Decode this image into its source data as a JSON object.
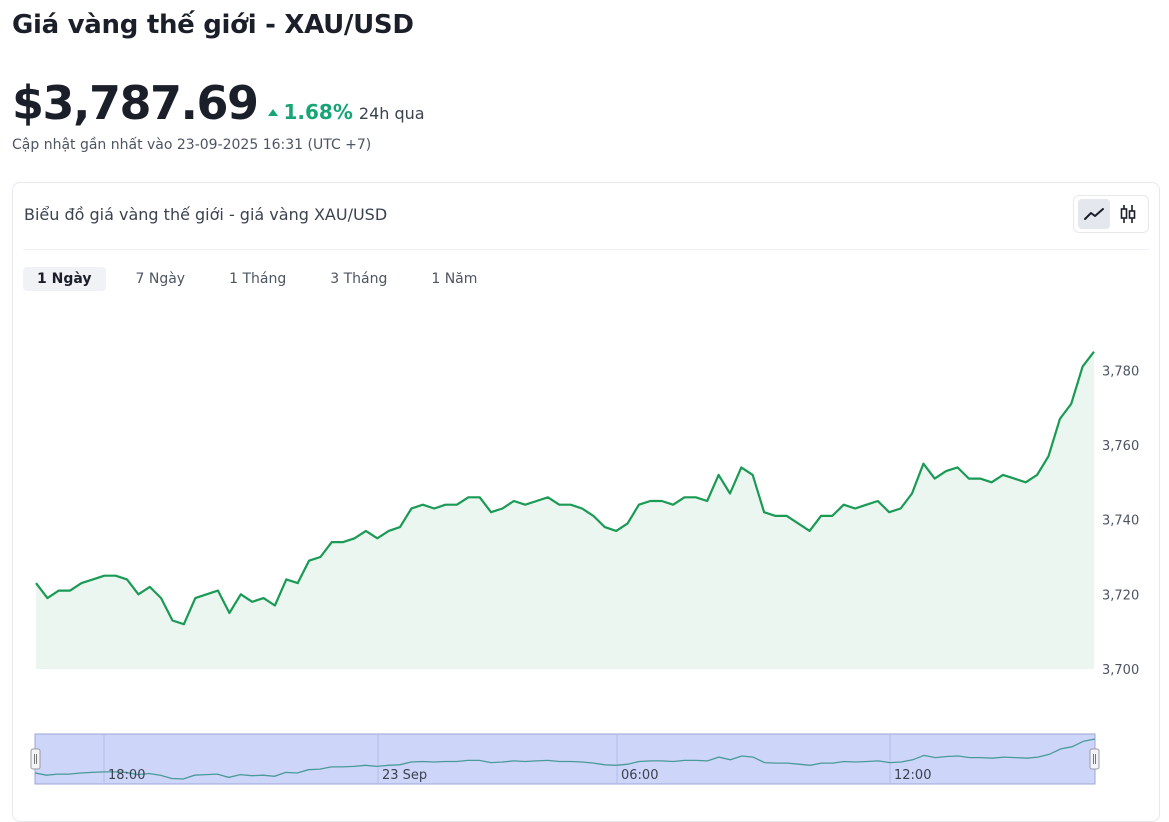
{
  "page": {
    "title": "Giá vàng thế giới - XAU/USD",
    "price": "$3,787.69",
    "change_pct": "1.68%",
    "change_period": "24h qua",
    "updated": "Cập nhật gần nhất vào 23-09-2025 16:31 (UTC +7)"
  },
  "card": {
    "title": "Biểu đồ giá vàng thế giới - giá vàng XAU/USD",
    "view_buttons": [
      {
        "icon": "line-chart-icon",
        "active": true
      },
      {
        "icon": "candlestick-icon",
        "active": false
      }
    ],
    "ranges": [
      {
        "label": "1 Ngày",
        "active": true
      },
      {
        "label": "7 Ngày",
        "active": false
      },
      {
        "label": "1 Tháng",
        "active": false
      },
      {
        "label": "3 Tháng",
        "active": false
      },
      {
        "label": "1 Năm",
        "active": false
      }
    ]
  },
  "colors": {
    "line": "#1a9a55",
    "area": "#eaf6ef",
    "navigator_fill": "#cdd5f8",
    "navigator_line": "#4a9a9a",
    "accent_up": "#17a673"
  },
  "chart_data": {
    "type": "area",
    "series": [
      {
        "values": [
          3723,
          3719,
          3721,
          3721,
          3723,
          3724,
          3725,
          3725,
          3724,
          3720,
          3722,
          3719,
          3713,
          3712,
          3719,
          3720,
          3721,
          3715,
          3720,
          3718,
          3719,
          3717,
          3724,
          3723,
          3729,
          3730,
          3734,
          3734,
          3735,
          3737,
          3735,
          3737,
          3738,
          3743,
          3744,
          3743,
          3744,
          3744,
          3746,
          3746,
          3742,
          3743,
          3745,
          3744,
          3745,
          3746,
          3744,
          3744,
          3743,
          3741,
          3738,
          3737,
          3739,
          3744,
          3745,
          3745,
          3744,
          3746,
          3746,
          3745,
          3752,
          3747,
          3754,
          3752,
          3742,
          3741,
          3741,
          3739,
          3737,
          3741,
          3741,
          3744,
          3743,
          3744,
          3745,
          3742,
          3743,
          3747,
          3755,
          3751,
          3753,
          3754,
          3751,
          3751,
          3750,
          3752,
          3751,
          3750,
          3752,
          3757,
          3767,
          3771,
          3781,
          3785
        ]
      }
    ],
    "ylim": [
      3700,
      3790
    ],
    "y_ticks": [
      "3,780",
      "3,760",
      "3,740",
      "3,720",
      "3,700"
    ],
    "y_tick_values": [
      3780,
      3760,
      3740,
      3720,
      3700
    ],
    "navigator": {
      "x_labels": [
        "18:00",
        "23 Sep",
        "06:00",
        "12:00"
      ]
    },
    "grid": false,
    "legend": "none"
  }
}
